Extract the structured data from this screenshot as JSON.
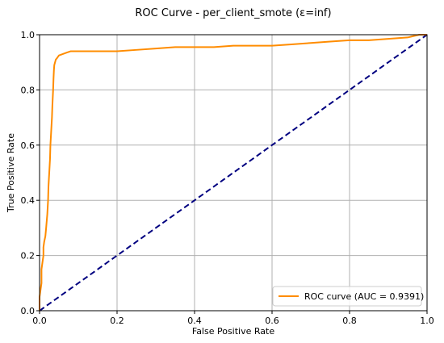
{
  "chart_data": {
    "type": "line",
    "title": "ROC Curve - per_client_smote (ε=inf)",
    "xlabel": "False Positive Rate",
    "ylabel": "True Positive Rate",
    "xlim": [
      0.0,
      1.0
    ],
    "ylim": [
      0.0,
      1.0
    ],
    "x_ticks": [
      "0.0",
      "0.2",
      "0.4",
      "0.6",
      "0.8",
      "1.0"
    ],
    "y_ticks": [
      "0.0",
      "0.2",
      "0.4",
      "0.6",
      "0.8",
      "1.0"
    ],
    "grid": true,
    "legend_position": "bottom-right",
    "series": [
      {
        "name": "ROC curve (AUC = 0.9391)",
        "color": "#ff8c00",
        "style": "solid",
        "x": [
          0.0,
          0.0,
          0.005,
          0.005,
          0.01,
          0.01,
          0.012,
          0.015,
          0.017,
          0.02,
          0.022,
          0.023,
          0.025,
          0.027,
          0.028,
          0.03,
          0.032,
          0.033,
          0.035,
          0.036,
          0.037,
          0.038,
          0.04,
          0.042,
          0.045,
          0.05,
          0.06,
          0.07,
          0.08,
          0.1,
          0.15,
          0.2,
          0.25,
          0.3,
          0.35,
          0.4,
          0.45,
          0.5,
          0.55,
          0.6,
          0.65,
          0.7,
          0.75,
          0.8,
          0.85,
          0.9,
          0.95,
          0.98,
          1.0
        ],
        "y": [
          0.0,
          0.05,
          0.1,
          0.15,
          0.2,
          0.23,
          0.25,
          0.27,
          0.3,
          0.35,
          0.4,
          0.45,
          0.5,
          0.55,
          0.6,
          0.65,
          0.7,
          0.74,
          0.8,
          0.84,
          0.87,
          0.89,
          0.9,
          0.91,
          0.915,
          0.925,
          0.93,
          0.935,
          0.94,
          0.94,
          0.94,
          0.94,
          0.945,
          0.95,
          0.955,
          0.955,
          0.955,
          0.96,
          0.96,
          0.96,
          0.965,
          0.97,
          0.975,
          0.98,
          0.98,
          0.985,
          0.99,
          1.0,
          1.0
        ]
      },
      {
        "name": "",
        "color": "#000080",
        "style": "dashed",
        "x": [
          0.0,
          1.0
        ],
        "y": [
          0.0,
          1.0
        ]
      }
    ]
  }
}
